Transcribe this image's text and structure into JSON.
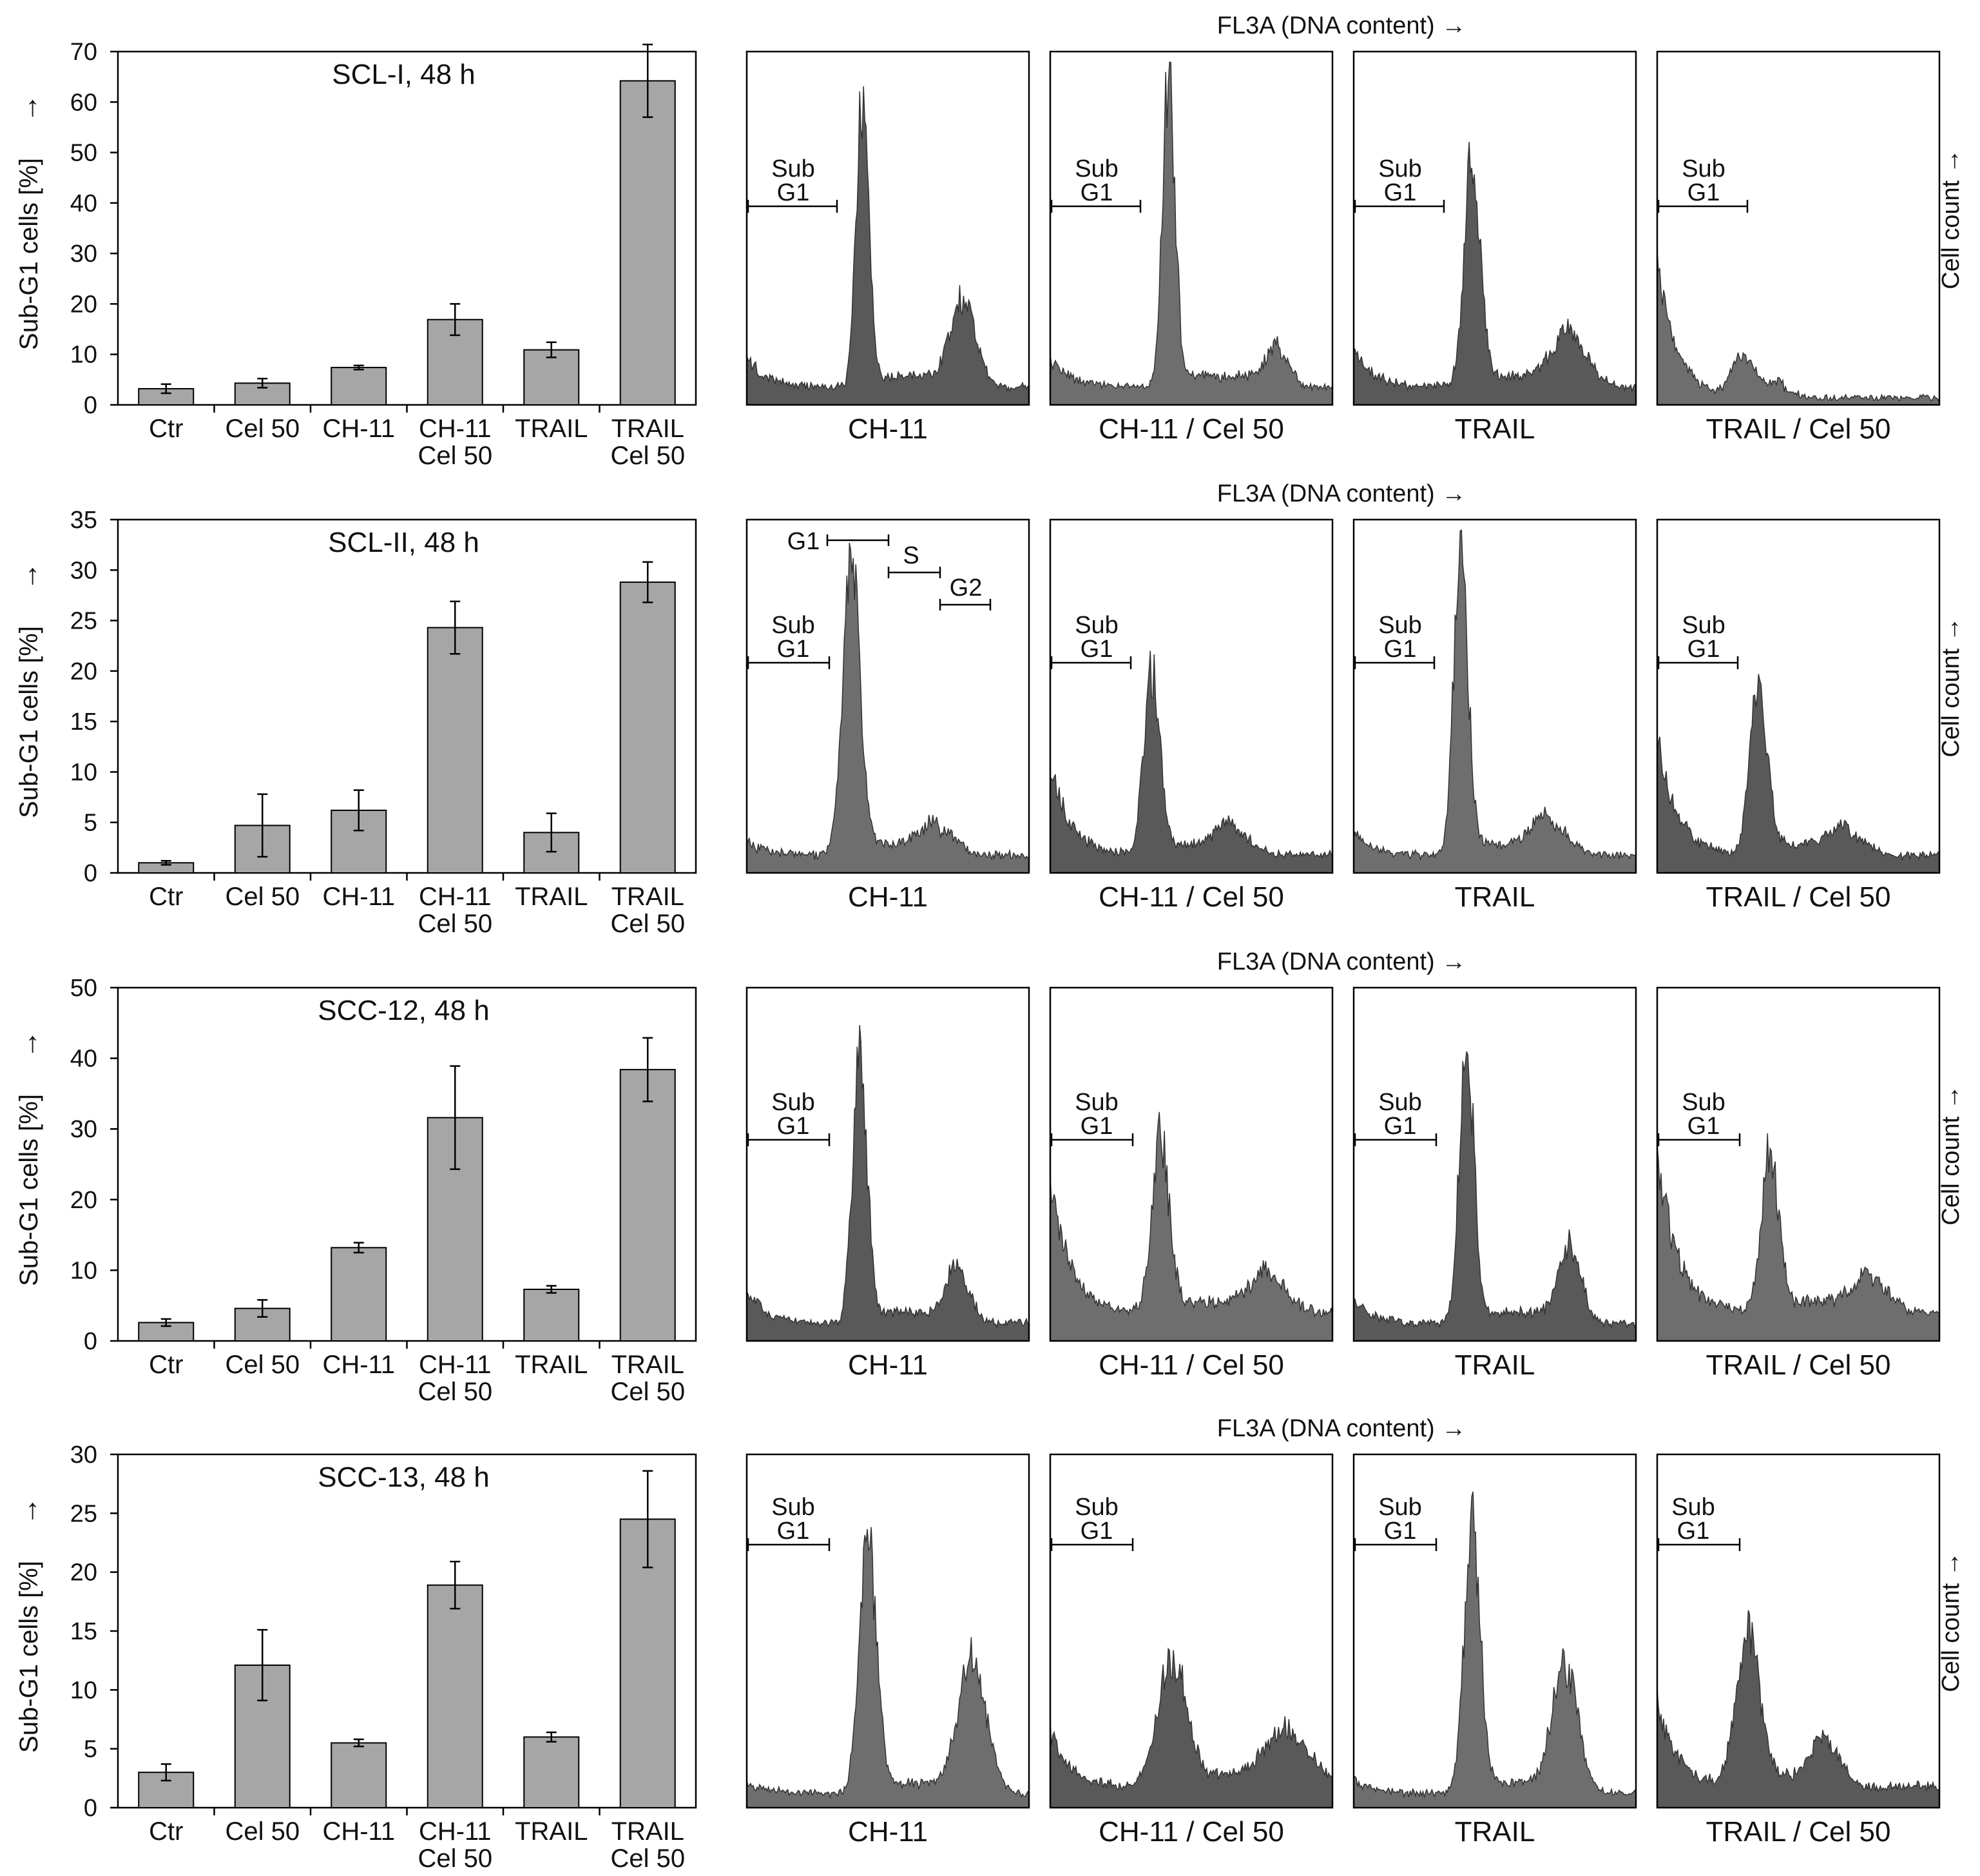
{
  "figure": {
    "colors": {
      "bar_fill": "#a6a6a6",
      "hist_fill_dark": "#595959",
      "hist_fill_mid": "#6e6e6e",
      "axis": "#000000",
      "text": "#111111"
    }
  },
  "shared": {
    "categories": [
      [
        "Ctr"
      ],
      [
        "Cel 50"
      ],
      [
        "CH-11"
      ],
      [
        "CH-11",
        "Cel 50"
      ],
      [
        "TRAIL"
      ],
      [
        "TRAIL",
        "Cel 50"
      ]
    ],
    "y_label": "Sub-G1 cells [%]",
    "y_arrow": "→",
    "x_hist_label": "FL3A (DNA  content)",
    "x_hist_arrow": "→",
    "y_hist_label": "Cell count",
    "hist_titles": [
      "CH-11",
      "CH-11 / Cel 50",
      "TRAIL",
      "TRAIL / Cel 50"
    ],
    "gate_sub": "Sub",
    "gate_g1": "G1",
    "gate_s": "S",
    "gate_g2": "G2"
  },
  "chart_data": [
    {
      "type": "bar",
      "title": "SCL-I, 48 h",
      "ylabel": "Sub-G1 cells [%]",
      "categories": [
        "Ctr",
        "Cel 50",
        "CH-11",
        "CH-11 Cel 50",
        "TRAIL",
        "TRAIL Cel 50"
      ],
      "values": [
        3.2,
        4.3,
        7.4,
        16.9,
        10.9,
        64.2
      ],
      "errors": [
        0.9,
        0.9,
        0.4,
        3.1,
        1.5,
        7.2
      ],
      "ylim": [
        0,
        70
      ],
      "yticks": [
        0,
        10,
        20,
        30,
        40,
        50,
        60,
        70
      ],
      "histograms": {
        "type": "histogram",
        "xlabel": "FL3A (DNA content)",
        "ylabel": "Cell count",
        "panels": [
          {
            "label": "CH-11",
            "shade": "dark",
            "baseline": 0.05,
            "subg1": 0.08,
            "peak": {
              "pos": 0.41,
              "h": 0.82,
              "w": 0.022
            },
            "g2": {
              "pos": 0.77,
              "h": 0.23,
              "w": 0.045
            }
          },
          {
            "label": "CH-11 / Cel 50",
            "shade": "mid",
            "baseline": 0.05,
            "subg1": 0.08,
            "peak": {
              "pos": 0.42,
              "h": 0.89,
              "w": 0.022
            },
            "g2": {
              "pos": 0.81,
              "h": 0.1,
              "w": 0.04
            }
          },
          {
            "label": "TRAIL",
            "shade": "dark",
            "baseline": 0.05,
            "subg1": 0.1,
            "peak": {
              "pos": 0.42,
              "h": 0.66,
              "w": 0.028
            },
            "g2": {
              "pos": 0.77,
              "h": 0.14,
              "w": 0.06
            }
          },
          {
            "label": "TRAIL / Cel 50",
            "shade": "mid",
            "baseline": 0.02,
            "subg1": 0.38,
            "peak": {
              "pos": 0.3,
              "h": 0.12,
              "w": 0.035
            },
            "g2": {
              "pos": 0.45,
              "h": 0.02,
              "w": 0.04
            }
          }
        ]
      }
    },
    {
      "type": "bar",
      "title": "SCL-II, 48 h",
      "ylabel": "Sub-G1 cells [%]",
      "categories": [
        "Ctr",
        "Cel 50",
        "CH-11",
        "CH-11 Cel 50",
        "TRAIL",
        "TRAIL Cel 50"
      ],
      "values": [
        1.0,
        4.7,
        6.2,
        24.3,
        4.0,
        28.8
      ],
      "errors": [
        0.2,
        3.1,
        2.0,
        2.6,
        1.9,
        2.0
      ],
      "ylim": [
        0,
        35
      ],
      "yticks": [
        0,
        5,
        10,
        15,
        20,
        25,
        30,
        35
      ],
      "histograms": {
        "type": "histogram",
        "xlabel": "FL3A (DNA content)",
        "ylabel": "Cell count",
        "panels": [
          {
            "label": "CH-11",
            "shade": "mid",
            "baseline": 0.05,
            "subg1": 0.04,
            "peak": {
              "pos": 0.37,
              "h": 0.85,
              "w": 0.03
            },
            "g2": {
              "pos": 0.68,
              "h": 0.07,
              "w": 0.06
            }
          },
          {
            "label": "CH-11 / Cel 50",
            "shade": "dark",
            "baseline": 0.05,
            "subg1": 0.26,
            "peak": {
              "pos": 0.36,
              "h": 0.52,
              "w": 0.028
            },
            "g2": {
              "pos": 0.65,
              "h": 0.07,
              "w": 0.06
            }
          },
          {
            "label": "TRAIL",
            "shade": "mid",
            "baseline": 0.05,
            "subg1": 0.06,
            "peak": {
              "pos": 0.38,
              "h": 0.88,
              "w": 0.025
            },
            "g2": {
              "pos": 0.7,
              "h": 0.09,
              "w": 0.06
            }
          },
          {
            "label": "TRAIL / Cel 50",
            "shade": "dark",
            "baseline": 0.05,
            "subg1": 0.34,
            "peak": {
              "pos": 0.36,
              "h": 0.48,
              "w": 0.03
            },
            "g2": {
              "pos": 0.68,
              "h": 0.06,
              "w": 0.06
            }
          }
        ]
      }
    },
    {
      "type": "bar",
      "title": "SCC-12, 48 h",
      "ylabel": "Sub-G1 cells [%]",
      "categories": [
        "Ctr",
        "Cel 50",
        "CH-11",
        "CH-11 Cel 50",
        "TRAIL",
        "TRAIL Cel 50"
      ],
      "values": [
        2.6,
        4.6,
        13.2,
        31.6,
        7.3,
        38.4
      ],
      "errors": [
        0.5,
        1.2,
        0.7,
        7.3,
        0.5,
        4.5
      ],
      "ylim": [
        0,
        50
      ],
      "yticks": [
        0,
        10,
        20,
        30,
        40,
        50
      ],
      "histograms": {
        "type": "histogram",
        "xlabel": "FL3A (DNA content)",
        "ylabel": "Cell count",
        "panels": [
          {
            "label": "CH-11",
            "shade": "dark",
            "baseline": 0.05,
            "subg1": 0.1,
            "peak": {
              "pos": 0.4,
              "h": 0.78,
              "w": 0.025
            },
            "g2": {
              "pos": 0.75,
              "h": 0.15,
              "w": 0.04
            }
          },
          {
            "label": "CH-11 / Cel 50",
            "shade": "mid",
            "baseline": 0.08,
            "subg1": 0.38,
            "peak": {
              "pos": 0.39,
              "h": 0.5,
              "w": 0.03
            },
            "g2": {
              "pos": 0.78,
              "h": 0.1,
              "w": 0.06
            }
          },
          {
            "label": "TRAIL",
            "shade": "dark",
            "baseline": 0.05,
            "subg1": 0.06,
            "peak": {
              "pos": 0.4,
              "h": 0.82,
              "w": 0.025
            },
            "g2": {
              "pos": 0.77,
              "h": 0.2,
              "w": 0.04
            }
          },
          {
            "label": "TRAIL / Cel 50",
            "shade": "mid",
            "baseline": 0.08,
            "subg1": 0.46,
            "peak": {
              "pos": 0.4,
              "h": 0.45,
              "w": 0.03
            },
            "g2": {
              "pos": 0.76,
              "h": 0.09,
              "w": 0.06
            }
          }
        ]
      }
    },
    {
      "type": "bar",
      "title": "SCC-13, 48 h",
      "ylabel": "Sub-G1 cells [%]",
      "categories": [
        "Ctr",
        "Cel 50",
        "CH-11",
        "CH-11 Cel 50",
        "TRAIL",
        "TRAIL Cel 50"
      ],
      "values": [
        3.0,
        12.1,
        5.5,
        18.9,
        6.0,
        24.5
      ],
      "errors": [
        0.7,
        3.0,
        0.3,
        2.0,
        0.4,
        4.1
      ],
      "ylim": [
        0,
        30
      ],
      "yticks": [
        0,
        5,
        10,
        15,
        20,
        25,
        30
      ],
      "histograms": {
        "type": "histogram",
        "xlabel": "FL3A (DNA content)",
        "ylabel": "Cell count",
        "panels": [
          {
            "label": "CH-11",
            "shade": "mid",
            "baseline": 0.04,
            "subg1": 0.03,
            "peak": {
              "pos": 0.43,
              "h": 0.7,
              "w": 0.03
            },
            "g2": {
              "pos": 0.8,
              "h": 0.36,
              "w": 0.05
            }
          },
          {
            "label": "CH-11 / Cel 50",
            "shade": "dark",
            "baseline": 0.06,
            "subg1": 0.16,
            "peak": {
              "pos": 0.43,
              "h": 0.36,
              "w": 0.05
            },
            "g2": {
              "pos": 0.85,
              "h": 0.14,
              "w": 0.08
            }
          },
          {
            "label": "TRAIL",
            "shade": "mid",
            "baseline": 0.04,
            "subg1": 0.04,
            "peak": {
              "pos": 0.42,
              "h": 0.76,
              "w": 0.028
            },
            "g2": {
              "pos": 0.75,
              "h": 0.35,
              "w": 0.045
            }
          },
          {
            "label": "TRAIL / Cel 50",
            "shade": "dark",
            "baseline": 0.06,
            "subg1": 0.24,
            "peak": {
              "pos": 0.32,
              "h": 0.44,
              "w": 0.04
            },
            "g2": {
              "pos": 0.6,
              "h": 0.12,
              "w": 0.05
            }
          }
        ]
      }
    }
  ]
}
